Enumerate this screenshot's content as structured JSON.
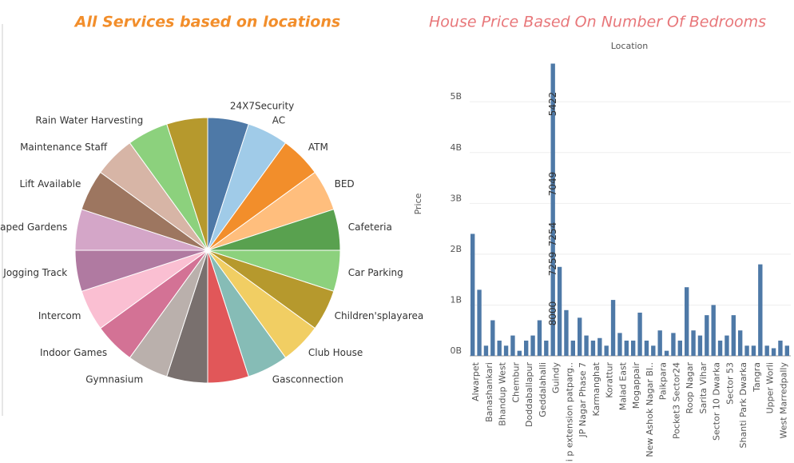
{
  "chart_data": [
    {
      "type": "pie",
      "title": "All Services based on locations",
      "categories": [
        "24X7Security",
        "AC",
        "ATM",
        "BED",
        "Cafeteria",
        "Car Parking",
        "Children'splayarea",
        "Club House",
        "Gasconnection",
        null,
        null,
        "Gymnasium",
        "Indoor Games",
        "Intercom",
        "Jogging Track",
        "Landscaped Gardens",
        "Lift Available",
        "Maintenance Staff",
        "Rain Water Harvesting",
        null
      ],
      "values": [
        5,
        5,
        5,
        5,
        5,
        5,
        5,
        5,
        5,
        5,
        5,
        5,
        5,
        5,
        5,
        5,
        5,
        5,
        5,
        5
      ],
      "colors": [
        "#4e79a7",
        "#a0cbe8",
        "#f28e2b",
        "#ffbe7d",
        "#59a14f",
        "#8cd17d",
        "#b6992d",
        "#f1ce63",
        "#86bcb6",
        "#e15759",
        "#79706e",
        "#bab0ac",
        "#d37295",
        "#fabfd2",
        "#b07aa1",
        "#d4a6c8",
        "#9d7660",
        "#d7b5a6",
        "#8cd17d",
        "#b6992d"
      ]
    },
    {
      "type": "bar",
      "title": "House Price Based On Number Of Bedrooms",
      "x_label": "Location",
      "y_label": "Price",
      "categories": [
        "Alwarpet",
        null,
        "Banashankari",
        null,
        "Bhandup West",
        null,
        "Chembur",
        null,
        "Doddaballapur",
        null,
        "Geddalahalli",
        null,
        "Guindy",
        null,
        "i p extension patparg..",
        null,
        "JP Nagar Phase 7",
        null,
        "Karmanghat",
        null,
        "Korattur",
        null,
        "Malad East",
        null,
        "Mogappair",
        null,
        "New Ashok Nagar Bl..",
        null,
        "Paikpara",
        null,
        "Pocket3 Sector24",
        null,
        "Roop Nagar",
        null,
        "Sarita Vihar",
        null,
        "Sector 10 Dwarka",
        null,
        "Sector 53",
        null,
        "Shanti Park Dwarka",
        null,
        "Tangra",
        null,
        "Upper Worli",
        null,
        "West Marredpally",
        null
      ],
      "values": [
        2400000000,
        1300000000,
        200000000,
        700000000,
        300000000,
        200000000,
        400000000,
        100000000,
        300000000,
        400000000,
        700000000,
        300000000,
        5750000000,
        1750000000,
        900000000,
        300000000,
        750000000,
        400000000,
        300000000,
        350000000,
        200000000,
        1100000000,
        450000000,
        300000000,
        300000000,
        850000000,
        300000000,
        200000000,
        500000000,
        100000000,
        450000000,
        300000000,
        1350000000,
        500000000,
        400000000,
        800000000,
        1000000000,
        300000000,
        400000000,
        800000000,
        500000000,
        200000000,
        200000000,
        1800000000,
        200000000,
        150000000,
        300000000,
        200000000
      ],
      "color": "#4e79a7",
      "annotations": [
        "5422",
        "7049",
        "7254",
        "7259",
        "8000"
      ],
      "ylim": [
        0,
        5900000000
      ],
      "yticks": [
        {
          "value": 0,
          "label": "0B"
        },
        {
          "value": 1000000000,
          "label": "1B"
        },
        {
          "value": 2000000000,
          "label": "2B"
        },
        {
          "value": 3000000000,
          "label": "3B"
        },
        {
          "value": 4000000000,
          "label": "4B"
        },
        {
          "value": 5000000000,
          "label": "5B"
        }
      ],
      "grid": true
    }
  ]
}
